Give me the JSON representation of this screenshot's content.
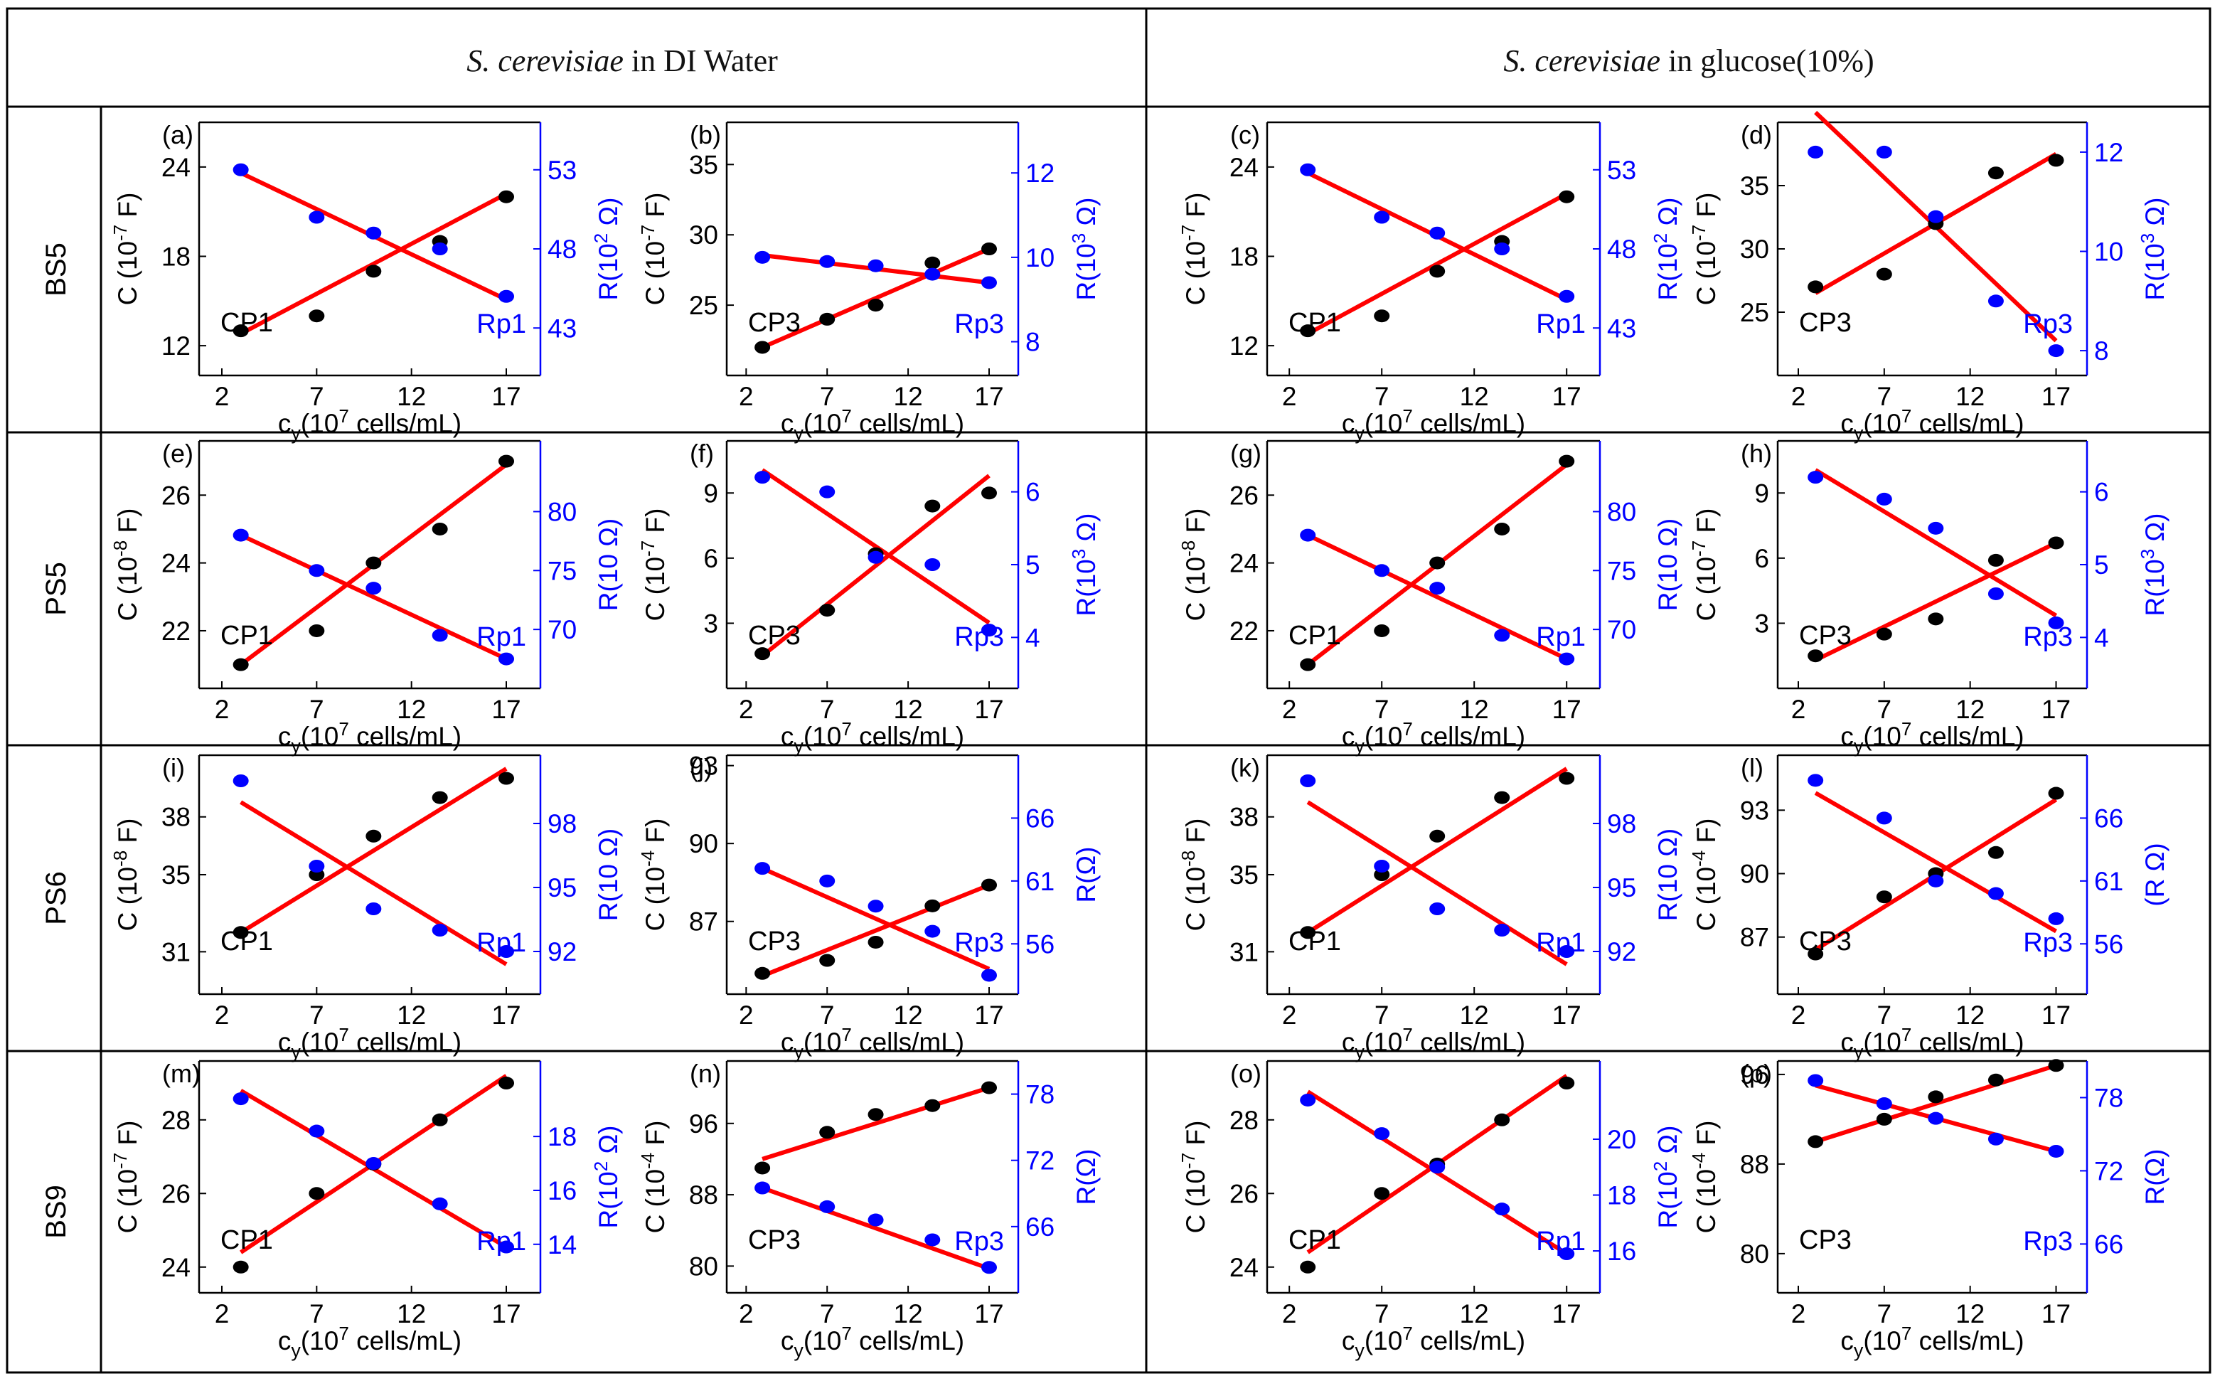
{
  "header": {
    "col1_species": "S. cerevisiae",
    "col1_medium": " in DI Water",
    "col2_species": "S. cerevisiae",
    "col2_medium": " in glucose(10%)"
  },
  "rows": [
    "BS5",
    "PS5",
    "PS6",
    "BS9"
  ],
  "colors": {
    "capacitance": "#000000",
    "resistance": "#0000ff",
    "fit_line": "#ff0000",
    "frame": "#000000"
  },
  "chart_data": [
    {
      "panel": "(a)",
      "type": "scatter",
      "x": [
        3,
        7,
        10,
        13.5,
        17
      ],
      "xticks": [
        2,
        7,
        12,
        17
      ],
      "xlabel_main": "c",
      "xlabel_sub": "y",
      "xlabel_rest": "(10",
      "xlabel_sup": "7",
      "xlabel_end": " cells/mL)",
      "left": {
        "label_pre": "C (10",
        "label_sup": "-7",
        "label_post": " F)",
        "ticks": [
          12,
          18,
          24
        ],
        "ylim": [
          10,
          27
        ],
        "values": [
          13,
          14,
          17,
          19,
          22
        ],
        "fit": [
          12.8,
          22.2
        ],
        "tag": "CP1"
      },
      "right": {
        "label_pre": "R(10",
        "label_sup": "2",
        "label_post": " Ω)",
        "ticks": [
          43,
          48,
          53
        ],
        "ylim": [
          40,
          56
        ],
        "values": [
          53,
          50,
          49,
          48,
          45
        ],
        "fit": [
          52.8,
          44.8
        ],
        "tag": "Rp1"
      }
    },
    {
      "panel": "(b)",
      "type": "scatter",
      "x": [
        3,
        7,
        10,
        13.5,
        17
      ],
      "xticks": [
        2,
        7,
        12,
        17
      ],
      "xlabel_main": "c",
      "xlabel_sub": "y",
      "xlabel_rest": "(10",
      "xlabel_sup": "7",
      "xlabel_end": " cells/mL)",
      "left": {
        "label_pre": "C (10",
        "label_sup": "-7",
        "label_post": " F)",
        "ticks": [
          25,
          30,
          35
        ],
        "ylim": [
          20,
          38
        ],
        "values": [
          22,
          24,
          25,
          28,
          29
        ],
        "fit": [
          22,
          29
        ],
        "tag": "CP3"
      },
      "right": {
        "label_pre": "R(10",
        "label_sup": "3",
        "label_post": " Ω)",
        "ticks": [
          8,
          10,
          12
        ],
        "ylim": [
          7.2,
          13.2
        ],
        "values": [
          10,
          9.9,
          9.8,
          9.6,
          9.4
        ],
        "fit": [
          10.05,
          9.4
        ],
        "tag": "Rp3"
      }
    },
    {
      "panel": "(c)",
      "type": "scatter",
      "x": [
        3,
        7,
        10,
        13.5,
        17
      ],
      "xticks": [
        2,
        7,
        12,
        17
      ],
      "xlabel_main": "c",
      "xlabel_sub": "y",
      "xlabel_rest": "(10",
      "xlabel_sup": "7",
      "xlabel_end": " cells/mL)",
      "left": {
        "label_pre": "C (10",
        "label_sup": "-7",
        "label_post": " F)",
        "ticks": [
          12,
          18,
          24
        ],
        "ylim": [
          10,
          27
        ],
        "values": [
          13,
          14,
          17,
          19,
          22
        ],
        "fit": [
          12.8,
          22.2
        ],
        "tag": "CP1"
      },
      "right": {
        "label_pre": "R(10",
        "label_sup": "2",
        "label_post": " Ω)",
        "ticks": [
          43,
          48,
          53
        ],
        "ylim": [
          40,
          56
        ],
        "values": [
          53,
          50,
          49,
          48,
          45
        ],
        "fit": [
          52.8,
          44.8
        ],
        "tag": "Rp1"
      }
    },
    {
      "panel": "(d)",
      "type": "scatter",
      "x": [
        3,
        7,
        10,
        13.5,
        17
      ],
      "xticks": [
        2,
        7,
        12,
        17
      ],
      "xlabel_main": "c",
      "xlabel_sub": "y",
      "xlabel_rest": "(10",
      "xlabel_sup": "7",
      "xlabel_end": " cells/mL)",
      "left": {
        "label_pre": "C (10",
        "label_sup": "-7",
        "label_post": " F)",
        "ticks": [
          25,
          30,
          35
        ],
        "ylim": [
          20,
          40
        ],
        "values": [
          27,
          28,
          32,
          36,
          37
        ],
        "fit": [
          26.5,
          37.5
        ],
        "tag": "CP3"
      },
      "right": {
        "label_pre": "R(10",
        "label_sup": "3",
        "label_post": " Ω)",
        "ticks": [
          8,
          10,
          12
        ],
        "ylim": [
          7.5,
          12.6
        ],
        "values": [
          12,
          12,
          10.7,
          9,
          8
        ],
        "fit": [
          12.8,
          8.2
        ],
        "tag": "Rp3"
      }
    },
    {
      "panel": "(e)",
      "type": "scatter",
      "x": [
        3,
        7,
        10,
        13.5,
        17
      ],
      "xticks": [
        2,
        7,
        12,
        17
      ],
      "xlabel_main": "c",
      "xlabel_sub": "y",
      "xlabel_rest": "(10",
      "xlabel_sup": "7",
      "xlabel_end": " cells/mL)",
      "left": {
        "label_pre": "C (10",
        "label_sup": "-8",
        "label_post": " F)",
        "ticks": [
          22,
          24,
          26
        ],
        "ylim": [
          20.3,
          27.6
        ],
        "values": [
          21,
          22,
          24,
          25,
          27
        ],
        "fit": [
          21,
          26.9
        ],
        "tag": "CP1"
      },
      "right": {
        "label_pre": "R(10 ",
        "label_sup": "",
        "label_post": "Ω)",
        "ticks": [
          70,
          75,
          80
        ],
        "ylim": [
          65,
          86
        ],
        "values": [
          78,
          75,
          73.5,
          69.5,
          67.5
        ],
        "fit": [
          78,
          67.5
        ],
        "tag": "Rp1"
      }
    },
    {
      "panel": "(f)",
      "type": "scatter",
      "x": [
        3,
        7,
        10,
        13.5,
        17
      ],
      "xticks": [
        2,
        7,
        12,
        17
      ],
      "xlabel_main": "c",
      "xlabel_sub": "y",
      "xlabel_rest": "(10",
      "xlabel_sup": "7",
      "xlabel_end": " cells/mL)",
      "left": {
        "label_pre": "C (10",
        "label_sup": "-7",
        "label_post": " F)",
        "ticks": [
          3,
          6,
          9
        ],
        "ylim": [
          0,
          11.4
        ],
        "values": [
          1.6,
          3.6,
          6.2,
          8.4,
          9
        ],
        "fit": [
          1.5,
          9.8
        ],
        "tag": "CP3"
      },
      "right": {
        "label_pre": "R(10",
        "label_sup": "3",
        "label_post": " Ω)",
        "ticks": [
          4,
          5,
          6
        ],
        "ylim": [
          3.3,
          6.7
        ],
        "values": [
          6.2,
          6,
          5.1,
          5,
          4.1
        ],
        "fit": [
          6.3,
          4.2
        ],
        "tag": "Rp3"
      }
    },
    {
      "panel": "(g)",
      "type": "scatter",
      "x": [
        3,
        7,
        10,
        13.5,
        17
      ],
      "xticks": [
        2,
        7,
        12,
        17
      ],
      "xlabel_main": "c",
      "xlabel_sub": "y",
      "xlabel_rest": "(10",
      "xlabel_sup": "7",
      "xlabel_end": " cells/mL)",
      "left": {
        "label_pre": "C (10",
        "label_sup": "-8",
        "label_post": " F)",
        "ticks": [
          22,
          24,
          26
        ],
        "ylim": [
          20.3,
          27.6
        ],
        "values": [
          21,
          22,
          24,
          25,
          27
        ],
        "fit": [
          21,
          26.9
        ],
        "tag": "CP1"
      },
      "right": {
        "label_pre": "R(10 ",
        "label_sup": "",
        "label_post": "Ω)",
        "ticks": [
          70,
          75,
          80
        ],
        "ylim": [
          65,
          86
        ],
        "values": [
          78,
          75,
          73.5,
          69.5,
          67.5
        ],
        "fit": [
          78,
          67.5
        ],
        "tag": "Rp1"
      }
    },
    {
      "panel": "(h)",
      "type": "scatter",
      "x": [
        3,
        7,
        10,
        13.5,
        17
      ],
      "xticks": [
        2,
        7,
        12,
        17
      ],
      "xlabel_main": "c",
      "xlabel_sub": "y",
      "xlabel_rest": "(10",
      "xlabel_sup": "7",
      "xlabel_end": " cells/mL)",
      "left": {
        "label_pre": "C (10",
        "label_sup": "-7",
        "label_post": " F)",
        "ticks": [
          3,
          6,
          9
        ],
        "ylim": [
          0,
          11.4
        ],
        "values": [
          1.5,
          2.5,
          3.2,
          5.9,
          6.7
        ],
        "fit": [
          1.3,
          6.7
        ],
        "tag": "CP3"
      },
      "right": {
        "label_pre": "R(10",
        "label_sup": "3",
        "label_post": " Ω)",
        "ticks": [
          4,
          5,
          6
        ],
        "ylim": [
          3.3,
          6.7
        ],
        "values": [
          6.2,
          5.9,
          5.5,
          4.6,
          4.2
        ],
        "fit": [
          6.3,
          4.3
        ],
        "tag": "Rp3"
      }
    },
    {
      "panel": "(i)",
      "type": "scatter",
      "x": [
        3,
        7,
        10,
        13.5,
        17
      ],
      "xticks": [
        2,
        7,
        12,
        17
      ],
      "xlabel_main": "c",
      "xlabel_sub": "y",
      "xlabel_rest": "(10",
      "xlabel_sup": "7",
      "xlabel_end": " cells/mL)",
      "left": {
        "label_pre": "C (10",
        "label_sup": "-8",
        "label_post": " F)",
        "ticks": [
          31,
          35,
          38
        ],
        "ylim": [
          28.8,
          41.2
        ],
        "values": [
          32,
          35,
          37,
          39,
          40
        ],
        "fit": [
          32,
          40.5
        ],
        "tag": "CP1"
      },
      "right": {
        "label_pre": "R(10 ",
        "label_sup": "",
        "label_post": "Ω)",
        "ticks": [
          92,
          95,
          98
        ],
        "ylim": [
          90,
          101.2
        ],
        "values": [
          100,
          96,
          94,
          93,
          92
        ],
        "fit": [
          99,
          91.4
        ],
        "tag": "Rp1"
      }
    },
    {
      "panel": "(j)",
      "type": "scatter",
      "x": [
        3,
        7,
        10,
        13.5,
        17
      ],
      "xticks": [
        2,
        7,
        12,
        17
      ],
      "xlabel_main": "c",
      "xlabel_sub": "y",
      "xlabel_rest": "(10",
      "xlabel_sup": "7",
      "xlabel_end": " cells/mL)",
      "left": {
        "label_pre": "C (10",
        "label_sup": "-4",
        "label_post": " F)",
        "ticks": [
          87,
          90,
          93
        ],
        "ylim": [
          84.2,
          93.4
        ],
        "values": [
          85,
          85.5,
          86.2,
          87.6,
          88.4
        ],
        "fit": [
          84.9,
          88.4
        ],
        "tag": "CP3"
      },
      "right": {
        "label_pre": "R(Ω)",
        "label_sup": "",
        "label_post": "",
        "ticks": [
          56,
          61,
          66
        ],
        "ylim": [
          52,
          71
        ],
        "values": [
          62,
          61,
          59,
          57,
          53.5
        ],
        "fit": [
          62,
          54
        ],
        "tag": "Rp3"
      }
    },
    {
      "panel": "(k)",
      "type": "scatter",
      "x": [
        3,
        7,
        10,
        13.5,
        17
      ],
      "xticks": [
        2,
        7,
        12,
        17
      ],
      "xlabel_main": "c",
      "xlabel_sub": "y",
      "xlabel_rest": "(10",
      "xlabel_sup": "7",
      "xlabel_end": " cells/mL)",
      "left": {
        "label_pre": "C (10",
        "label_sup": "-8",
        "label_post": " F)",
        "ticks": [
          31,
          35,
          38
        ],
        "ylim": [
          28.8,
          41.2
        ],
        "values": [
          32,
          35,
          37,
          39,
          40
        ],
        "fit": [
          32,
          40.5
        ],
        "tag": "CP1"
      },
      "right": {
        "label_pre": "R(10 ",
        "label_sup": "",
        "label_post": "Ω)",
        "ticks": [
          92,
          95,
          98
        ],
        "ylim": [
          90,
          101.2
        ],
        "values": [
          100,
          96,
          94,
          93,
          92
        ],
        "fit": [
          99,
          91.4
        ],
        "tag": "Rp1"
      }
    },
    {
      "panel": "(l)",
      "type": "scatter",
      "x": [
        3,
        7,
        10,
        13.5,
        17
      ],
      "xticks": [
        2,
        7,
        12,
        17
      ],
      "xlabel_main": "c",
      "xlabel_sub": "y",
      "xlabel_rest": "(10",
      "xlabel_sup": "7",
      "xlabel_end": " cells/mL)",
      "left": {
        "label_pre": "C (10",
        "label_sup": "-4",
        "label_post": " F)",
        "ticks": [
          87,
          90,
          93
        ],
        "ylim": [
          84.3,
          95.6
        ],
        "values": [
          86.2,
          88.9,
          90,
          91,
          93.8
        ],
        "fit": [
          86.4,
          93.5
        ],
        "tag": "CP3"
      },
      "right": {
        "label_pre": "(R Ω)",
        "label_sup": "",
        "label_post": "",
        "ticks": [
          56,
          61,
          66
        ],
        "ylim": [
          52,
          71
        ],
        "values": [
          69,
          66,
          61,
          60,
          58
        ],
        "fit": [
          68,
          57
        ],
        "tag": "Rp3"
      }
    },
    {
      "panel": "(m)",
      "type": "scatter",
      "x": [
        3,
        7,
        10,
        13.5,
        17
      ],
      "xticks": [
        2,
        7,
        12,
        17
      ],
      "xlabel_main": "c",
      "xlabel_sub": "y",
      "xlabel_rest": "(10",
      "xlabel_sup": "7",
      "xlabel_end": " cells/mL)",
      "left": {
        "label_pre": "C (10",
        "label_sup": "-7",
        "label_post": " F)",
        "ticks": [
          24,
          26,
          28
        ],
        "ylim": [
          23.3,
          29.6
        ],
        "values": [
          24,
          26,
          26.8,
          28,
          29
        ],
        "fit": [
          24.4,
          29.2
        ],
        "tag": "CP1"
      },
      "right": {
        "label_pre": "R(10",
        "label_sup": "2",
        "label_post": " Ω)",
        "ticks": [
          14,
          16,
          18
        ],
        "ylim": [
          12.2,
          20.8
        ],
        "values": [
          19.4,
          18.2,
          17,
          15.5,
          13.9
        ],
        "fit": [
          19.7,
          13.9
        ],
        "tag": "Rp1"
      }
    },
    {
      "panel": "(n)",
      "type": "scatter",
      "x": [
        3,
        7,
        10,
        13.5,
        17
      ],
      "xticks": [
        2,
        7,
        12,
        17
      ],
      "xlabel_main": "c",
      "xlabel_sub": "y",
      "xlabel_rest": "(10",
      "xlabel_sup": "7",
      "xlabel_end": " cells/mL)",
      "left": {
        "label_pre": "C (10",
        "label_sup": "-4",
        "label_post": " F)",
        "ticks": [
          80,
          88,
          96
        ],
        "ylim": [
          77,
          103
        ],
        "values": [
          91,
          95,
          97,
          98,
          100
        ],
        "fit": [
          92,
          100
        ],
        "tag": "CP3"
      },
      "right": {
        "label_pre": "R(Ω)",
        "label_sup": "",
        "label_post": "",
        "ticks": [
          66,
          72,
          78
        ],
        "ylim": [
          60,
          81
        ],
        "values": [
          69.5,
          67.8,
          66.6,
          64.8,
          62.3
        ],
        "fit": [
          69.5,
          62.2
        ],
        "tag": "Rp3"
      }
    },
    {
      "panel": "(o)",
      "type": "scatter",
      "x": [
        3,
        7,
        10,
        13.5,
        17
      ],
      "xticks": [
        2,
        7,
        12,
        17
      ],
      "xlabel_main": "c",
      "xlabel_sub": "y",
      "xlabel_rest": "(10",
      "xlabel_sup": "7",
      "xlabel_end": " cells/mL)",
      "left": {
        "label_pre": "C (10",
        "label_sup": "-7",
        "label_post": " F)",
        "ticks": [
          24,
          26,
          28
        ],
        "ylim": [
          23.3,
          29.6
        ],
        "values": [
          24,
          26,
          26.8,
          28,
          29
        ],
        "fit": [
          24.4,
          29.2
        ],
        "tag": "CP1"
      },
      "right": {
        "label_pre": "R(10",
        "label_sup": "2",
        "label_post": " Ω)",
        "ticks": [
          16,
          18,
          20
        ],
        "ylim": [
          14.5,
          22.8
        ],
        "values": [
          21.4,
          20.2,
          19,
          17.5,
          15.9
        ],
        "fit": [
          21.7,
          15.9
        ],
        "tag": "Rp1"
      }
    },
    {
      "panel": "(p)",
      "type": "scatter",
      "x": [
        3,
        7,
        10,
        13.5,
        17
      ],
      "xticks": [
        2,
        7,
        12,
        17
      ],
      "xlabel_main": "c",
      "xlabel_sub": "y",
      "xlabel_rest": "(10",
      "xlabel_sup": "7",
      "xlabel_end": " cells/mL)",
      "left": {
        "label_pre": "C (10",
        "label_sup": "-4",
        "label_post": " F)",
        "ticks": [
          80,
          88,
          96
        ],
        "ylim": [
          76.5,
          97.2
        ],
        "values": [
          90,
          92,
          94,
          95.5,
          96.8
        ],
        "fit": [
          90,
          96.8
        ],
        "tag": "CP3"
      },
      "right": {
        "label_pre": "R(Ω)",
        "label_sup": "",
        "label_post": "",
        "ticks": [
          66,
          72,
          78
        ],
        "ylim": [
          62,
          81
        ],
        "values": [
          79.4,
          77.5,
          76.3,
          74.6,
          73.6
        ],
        "fit": [
          79,
          73.6
        ],
        "tag": "Rp3"
      }
    }
  ]
}
